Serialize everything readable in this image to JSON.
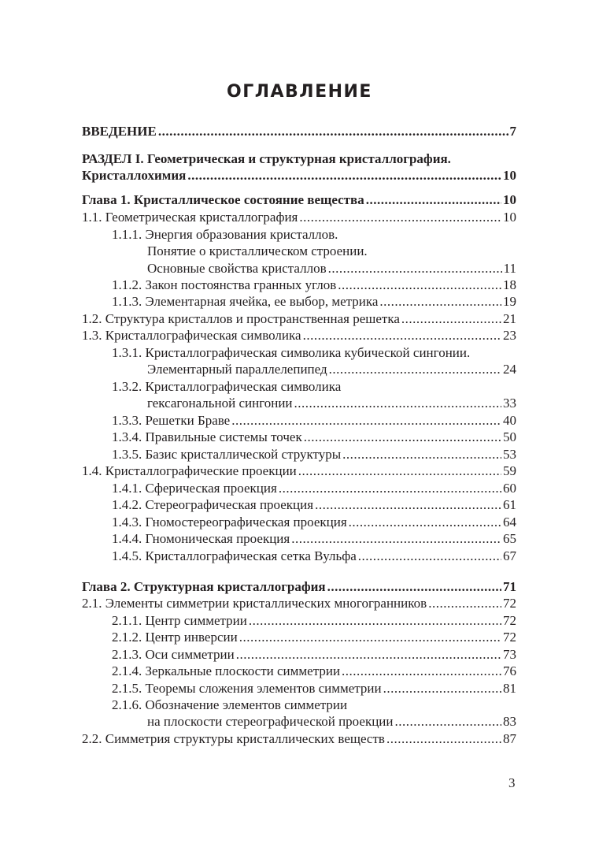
{
  "title": "ОГЛАВЛЕНИЕ",
  "entries": [
    {
      "lines": [
        "ВВЕДЕНИЕ"
      ],
      "page": "7",
      "bold": true,
      "level": 0
    },
    {
      "lines": [
        "РАЗДЕЛ  I. Геометрическая и структурная кристаллография.",
        "Кристаллохимия"
      ],
      "page": "10",
      "bold": true,
      "level": 0
    },
    {
      "lines": [
        "Глава 1. Кристаллическое состояние вещества"
      ],
      "page": "10",
      "bold": true,
      "level": 0
    },
    {
      "lines": [
        "1.1. Геометрическая кристаллография"
      ],
      "page": "10",
      "level": 1
    },
    {
      "lines": [
        "1.1.1. Энергия образования кристаллов.",
        "Понятие о кристаллическом строении.",
        "Основные свойства кристаллов"
      ],
      "page": "11",
      "level": 2
    },
    {
      "lines": [
        "1.1.2. Закон постоянства гранных углов"
      ],
      "page": "18",
      "level": 2
    },
    {
      "lines": [
        "1.1.3. Элементарная ячейка, ее выбор, метрика"
      ],
      "page": "19",
      "level": 2
    },
    {
      "lines": [
        "1.2. Структура кристаллов и пространственная решетка"
      ],
      "page": "21",
      "level": 1
    },
    {
      "lines": [
        "1.3. Кристаллографическая символика"
      ],
      "page": "23",
      "level": 1
    },
    {
      "lines": [
        "1.3.1. Кристаллографическая символика кубической сингонии.",
        "Элементарный параллелепипед"
      ],
      "page": "24",
      "level": 2
    },
    {
      "lines": [
        "1.3.2. Кристаллографическая символика",
        "гексагональной сингонии"
      ],
      "page": "33",
      "level": 2
    },
    {
      "lines": [
        "1.3.3. Решетки Браве"
      ],
      "page": "40",
      "level": 2
    },
    {
      "lines": [
        "1.3.4. Правильные системы точек"
      ],
      "page": "50",
      "level": 2
    },
    {
      "lines": [
        "1.3.5. Базис кристаллической структуры"
      ],
      "page": "53",
      "level": 2
    },
    {
      "lines": [
        "1.4. Кристаллографические проекции"
      ],
      "page": "59",
      "level": 1
    },
    {
      "lines": [
        "1.4.1. Сферическая проекция"
      ],
      "page": "60",
      "level": 2
    },
    {
      "lines": [
        "1.4.2. Стереографическая проекция"
      ],
      "page": "61",
      "level": 2
    },
    {
      "lines": [
        "1.4.3. Гномостереографическая проекция"
      ],
      "page": "64",
      "level": 2
    },
    {
      "lines": [
        "1.4.4. Гномоническая проекция"
      ],
      "page": "65",
      "level": 2
    },
    {
      "lines": [
        "1.4.5. Кристаллографическая сетка Вульфа"
      ],
      "page": "67",
      "level": 2
    },
    {
      "lines": [
        "Глава 2. Структурная кристаллография"
      ],
      "page": "71",
      "bold": true,
      "level": 0
    },
    {
      "lines": [
        "2.1. Элементы симметрии кристаллических многогранников"
      ],
      "page": "72",
      "level": 1
    },
    {
      "lines": [
        "2.1.1. Центр симметрии"
      ],
      "page": "72",
      "level": 2
    },
    {
      "lines": [
        "2.1.2. Центр инверсии"
      ],
      "page": "72",
      "level": 2
    },
    {
      "lines": [
        "2.1.3. Оси симметрии"
      ],
      "page": "73",
      "level": 2
    },
    {
      "lines": [
        "2.1.4. Зеркальные плоскости симметрии"
      ],
      "page": "76",
      "level": 2
    },
    {
      "lines": [
        "2.1.5. Теоремы сложения элементов симметрии"
      ],
      "page": "81",
      "level": 2
    },
    {
      "lines": [
        "2.1.6. Обозначение элементов симметрии",
        "на плоскости стереографической проекции"
      ],
      "page": "83",
      "level": 2
    },
    {
      "lines": [
        "2.2. Симметрия структуры кристаллических веществ"
      ],
      "page": "87",
      "level": 1
    }
  ],
  "page_number": "3"
}
